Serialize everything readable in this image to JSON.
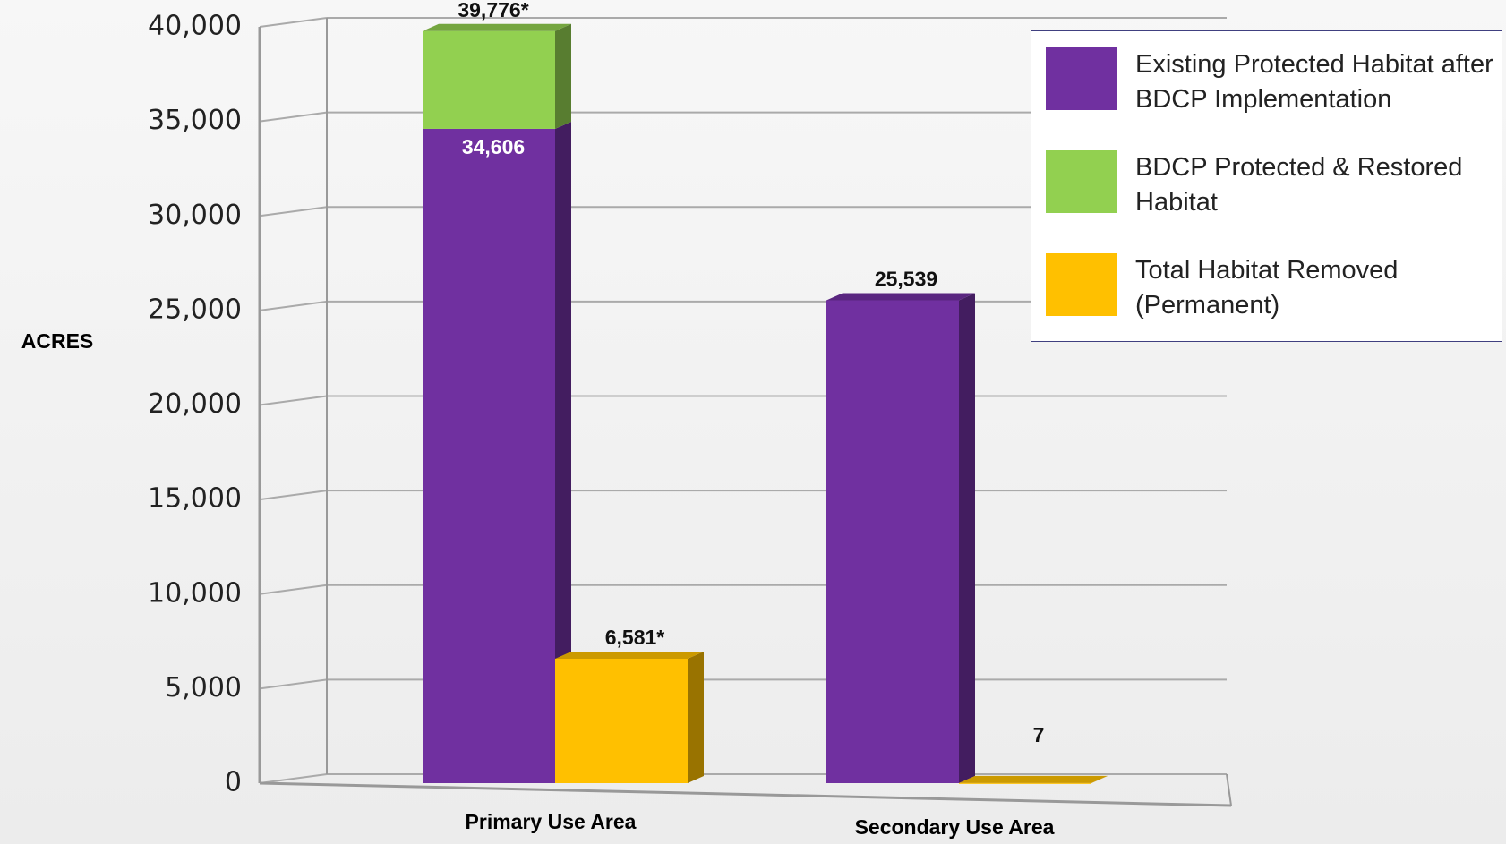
{
  "chart_data": {
    "type": "bar",
    "ylabel": "ACRES",
    "categories": [
      "Primary Use Area",
      "Secondary Use Area"
    ],
    "series": [
      {
        "name": "Existing Protected Habitat after BDCP Implementation",
        "color": "#7030a0",
        "stack": 0,
        "values": [
          34606,
          25539
        ],
        "value_labels": [
          "34,606",
          "25,539"
        ]
      },
      {
        "name": "BDCP Protected & Restored Habitat",
        "color": "#92d050",
        "stack": 0,
        "values": [
          5170,
          null
        ]
      },
      {
        "name": "Total Habitat Removed (Permanent)",
        "color": "#ffc000",
        "stack": 1,
        "values": [
          6581,
          7
        ],
        "value_labels": [
          "6,581*",
          "7"
        ]
      }
    ],
    "stack_totals": [
      39776,
      null
    ],
    "stack_total_labels": [
      "39,776*",
      null
    ],
    "ylim": [
      0,
      40000
    ],
    "yticks": [
      0,
      {
        "value": 5000,
        "label": "5,000"
      },
      {
        "value": 10000,
        "label": "10,000"
      },
      {
        "value": 15000,
        "label": "15,000"
      },
      {
        "value": 20000,
        "label": "20,000"
      },
      {
        "value": 25000,
        "label": "25,000"
      },
      {
        "value": 30000,
        "label": "30,000"
      },
      {
        "value": 35000,
        "label": "35,000"
      },
      {
        "value": 40000,
        "label": "40,000"
      }
    ],
    "grid": true
  }
}
